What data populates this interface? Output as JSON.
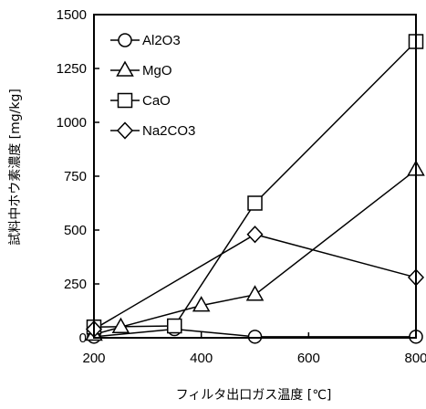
{
  "chart_data": {
    "type": "line",
    "xlabel": "フィルタ出口ガス温度 [℃]",
    "ylabel": "試料中ホウ素濃度 [mg/kg]",
    "xlim": [
      200,
      800
    ],
    "ylim": [
      0,
      1500
    ],
    "x_ticks": [
      "200",
      "400",
      "600",
      "800"
    ],
    "y_ticks": [
      "0",
      "250",
      "500",
      "750",
      "1000",
      "1250",
      "1500"
    ],
    "grid": false,
    "legend": "top-left",
    "series": [
      {
        "name": "Al2O3",
        "marker": "circle",
        "x": [
          200,
          350,
          500,
          800
        ],
        "y": [
          5,
          40,
          5,
          5
        ]
      },
      {
        "name": "MgO",
        "marker": "triangle",
        "x": [
          200,
          250,
          400,
          500,
          800
        ],
        "y": [
          15,
          50,
          150,
          200,
          780
        ]
      },
      {
        "name": "CaO",
        "marker": "square",
        "x": [
          200,
          350,
          500,
          800
        ],
        "y": [
          50,
          55,
          625,
          1375
        ]
      },
      {
        "name": "Na2CO3",
        "marker": "diamond",
        "x": [
          200,
          500,
          800
        ],
        "y": [
          40,
          480,
          280
        ]
      }
    ]
  }
}
